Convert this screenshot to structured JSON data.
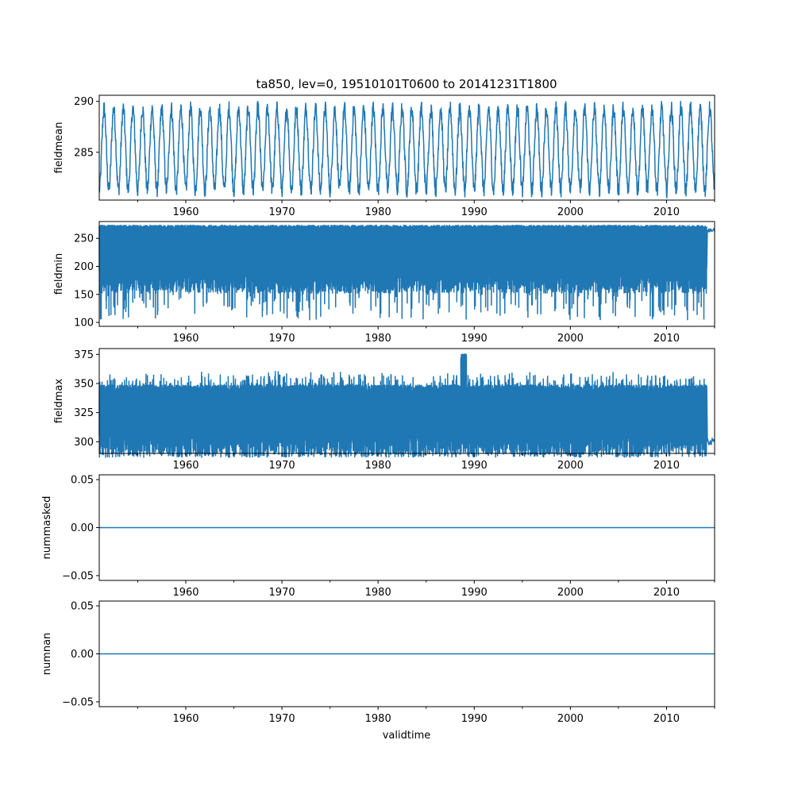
{
  "figure": {
    "title": "ta850, lev=0, 19510101T0600 to 20141231T1800",
    "xlabel": "validtime",
    "line_color": "#1f77b4"
  },
  "chart_data": [
    {
      "type": "line",
      "name": "fieldmean",
      "ylabel": "fieldmean",
      "xlim": [
        1951.0,
        2015.0
      ],
      "ylim": [
        280.3,
        290.6
      ],
      "yticks": [
        285,
        290
      ],
      "ytick_labels": [
        "285",
        "290"
      ],
      "xticks": [
        1960,
        1970,
        1980,
        1990,
        2000,
        2010
      ],
      "xtick_labels": [
        "1960",
        "1970",
        "1980",
        "1990",
        "2000",
        "2010"
      ],
      "signal": "seasonal",
      "seasonal_min": 281.3,
      "seasonal_max": 289.3,
      "x_end": 2015.0
    },
    {
      "type": "line",
      "name": "fieldmin",
      "ylabel": "fieldmin",
      "xlim": [
        1951.0,
        2015.0
      ],
      "ylim": [
        93,
        280
      ],
      "yticks": [
        100,
        150,
        200,
        250
      ],
      "ytick_labels": [
        "100",
        "150",
        "200",
        "250"
      ],
      "xticks": [
        1960,
        1970,
        1980,
        1990,
        2000,
        2010
      ],
      "xtick_labels": [
        "1960",
        "1970",
        "1980",
        "1990",
        "2000",
        "2010"
      ],
      "signal": "band",
      "band_top": 270,
      "band_bottom": 175,
      "spike_min": 103,
      "x_band_end": 2014.2,
      "x_end": 2015.0,
      "tail_value": 265
    },
    {
      "type": "line",
      "name": "fieldmax",
      "ylabel": "fieldmax",
      "xlim": [
        1951.0,
        2015.0
      ],
      "ylim": [
        290,
        380
      ],
      "yticks": [
        300,
        325,
        350,
        375
      ],
      "ytick_labels": [
        "300",
        "325",
        "350",
        "375"
      ],
      "xticks": [
        1960,
        1970,
        1980,
        1990,
        2000,
        2010
      ],
      "xtick_labels": [
        "1960",
        "1970",
        "1980",
        "1990",
        "2000",
        "2010"
      ],
      "signal": "band",
      "band_top": 345,
      "band_bottom": 298,
      "spike_max": 376,
      "spike_x": 1988.9,
      "x_band_end": 2014.2,
      "x_end": 2015.0,
      "tail_value": 300
    },
    {
      "type": "line",
      "name": "nummasked",
      "ylabel": "nummasked",
      "xlim": [
        1951.0,
        2015.0
      ],
      "ylim": [
        -0.055,
        0.055
      ],
      "yticks": [
        -0.05,
        0.0,
        0.05
      ],
      "ytick_labels": [
        "−0.05",
        "0.00",
        "0.05"
      ],
      "xticks": [
        1960,
        1970,
        1980,
        1990,
        2000,
        2010
      ],
      "xtick_labels": [
        "1960",
        "1970",
        "1980",
        "1990",
        "2000",
        "2010"
      ],
      "signal": "constant",
      "value": 0.0,
      "x_end": 2015.0
    },
    {
      "type": "line",
      "name": "numnan",
      "ylabel": "numnan",
      "xlim": [
        1951.0,
        2015.0
      ],
      "ylim": [
        -0.055,
        0.055
      ],
      "yticks": [
        -0.05,
        0.0,
        0.05
      ],
      "ytick_labels": [
        "−0.05",
        "0.00",
        "0.05"
      ],
      "xticks": [
        1960,
        1970,
        1980,
        1990,
        2000,
        2010
      ],
      "xtick_labels": [
        "1960",
        "1970",
        "1980",
        "1990",
        "2000",
        "2010"
      ],
      "signal": "constant",
      "value": 0.0,
      "x_end": 2015.0
    }
  ]
}
